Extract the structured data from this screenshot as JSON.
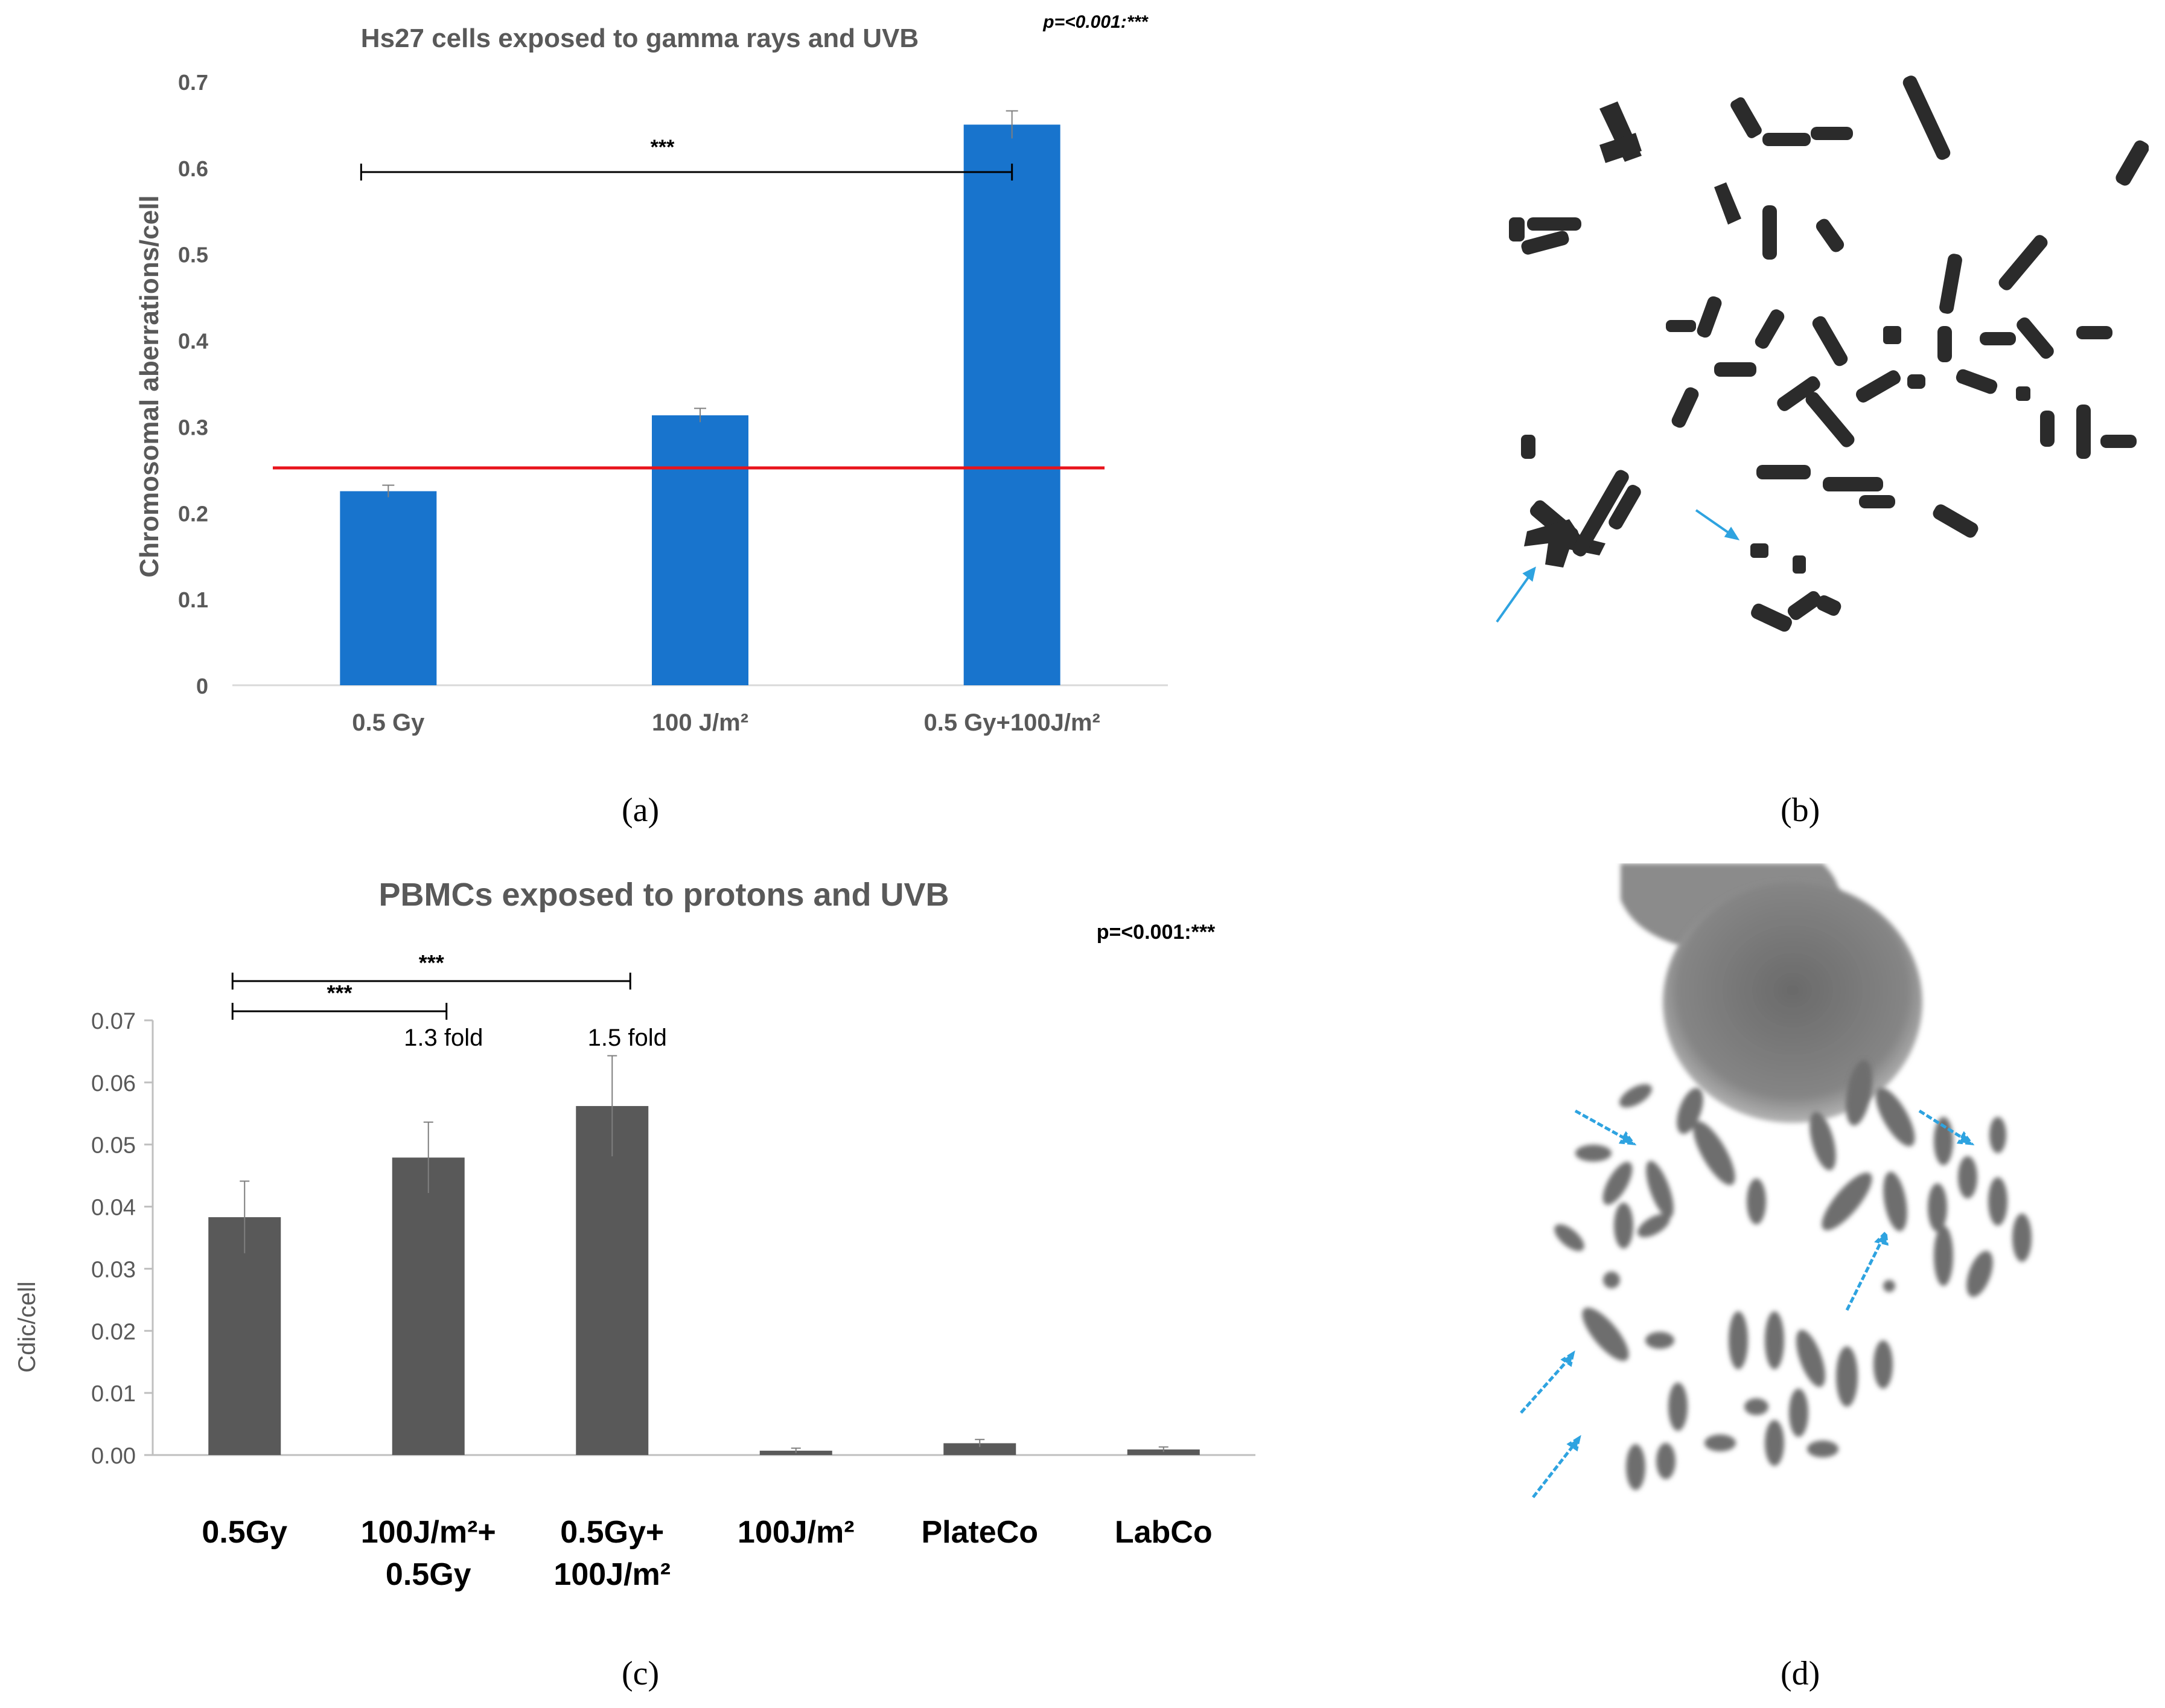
{
  "panel_a": {
    "label": "(a)",
    "significance_note": "p=<0.001:***"
  },
  "panel_b": {
    "label": "(b)"
  },
  "panel_c": {
    "label": "(c)",
    "significance_note": "p=<0.001:***"
  },
  "panel_d": {
    "label": "(d)"
  },
  "colors": {
    "bar_a": "#1874CD",
    "reference_line_a": "#E8141C",
    "bar_c": "#595959",
    "title_gray": "#595959",
    "arrow_blue": "#2EA3E0"
  },
  "icons": [
    "metaphase-spread-image",
    "arrow-icon"
  ],
  "chart_data": [
    {
      "type": "bar",
      "title": "Hs27 cells exposed to gamma rays and UVB",
      "xlabel": "",
      "ylabel": "Chromosomal aberrations/cell",
      "categories": [
        "0.5 Gy",
        "100 J/m²",
        "0.5 Gy+100J/m²"
      ],
      "values": [
        0.225,
        0.313,
        0.65
      ],
      "errors": [
        0.007,
        0.008,
        0.016
      ],
      "ylim": [
        0,
        0.7
      ],
      "yticks": [
        "0",
        "0.1",
        "0.2",
        "0.3",
        "0.4",
        "0.5",
        "0.6",
        "0.7"
      ],
      "reference_line": 0.252,
      "brackets": [
        {
          "from": 0,
          "to": 2,
          "label": "***"
        }
      ],
      "grid": false
    },
    {
      "type": "bar",
      "title": "PBMCs exposed to protons and UVB",
      "xlabel": "",
      "ylabel": "Cdic/cell",
      "categories": [
        [
          "0.5Gy"
        ],
        [
          "100J/m²+",
          "0.5Gy"
        ],
        [
          "0.5Gy+",
          "100J/m²"
        ],
        [
          "100J/m²"
        ],
        [
          "PlateCo"
        ],
        [
          "LabCo"
        ]
      ],
      "values": [
        0.0383,
        0.0479,
        0.0562,
        0.0007,
        0.0019,
        0.0009
      ],
      "errors": [
        0.0058,
        0.0057,
        0.0081,
        0.0004,
        0.0006,
        0.0004
      ],
      "ylim": [
        0,
        0.07
      ],
      "yticks": [
        "0.00",
        "0.01",
        "0.02",
        "0.03",
        "0.04",
        "0.05",
        "0.06",
        "0.07"
      ],
      "brackets": [
        {
          "from": 0,
          "to": 1,
          "label": "***"
        },
        {
          "from": 0,
          "to": 2,
          "label": "***"
        }
      ],
      "bar_annotations": [
        {
          "index": 1,
          "text": "1.3 fold"
        },
        {
          "index": 2,
          "text": "1.5 fold"
        }
      ],
      "grid": false
    }
  ]
}
